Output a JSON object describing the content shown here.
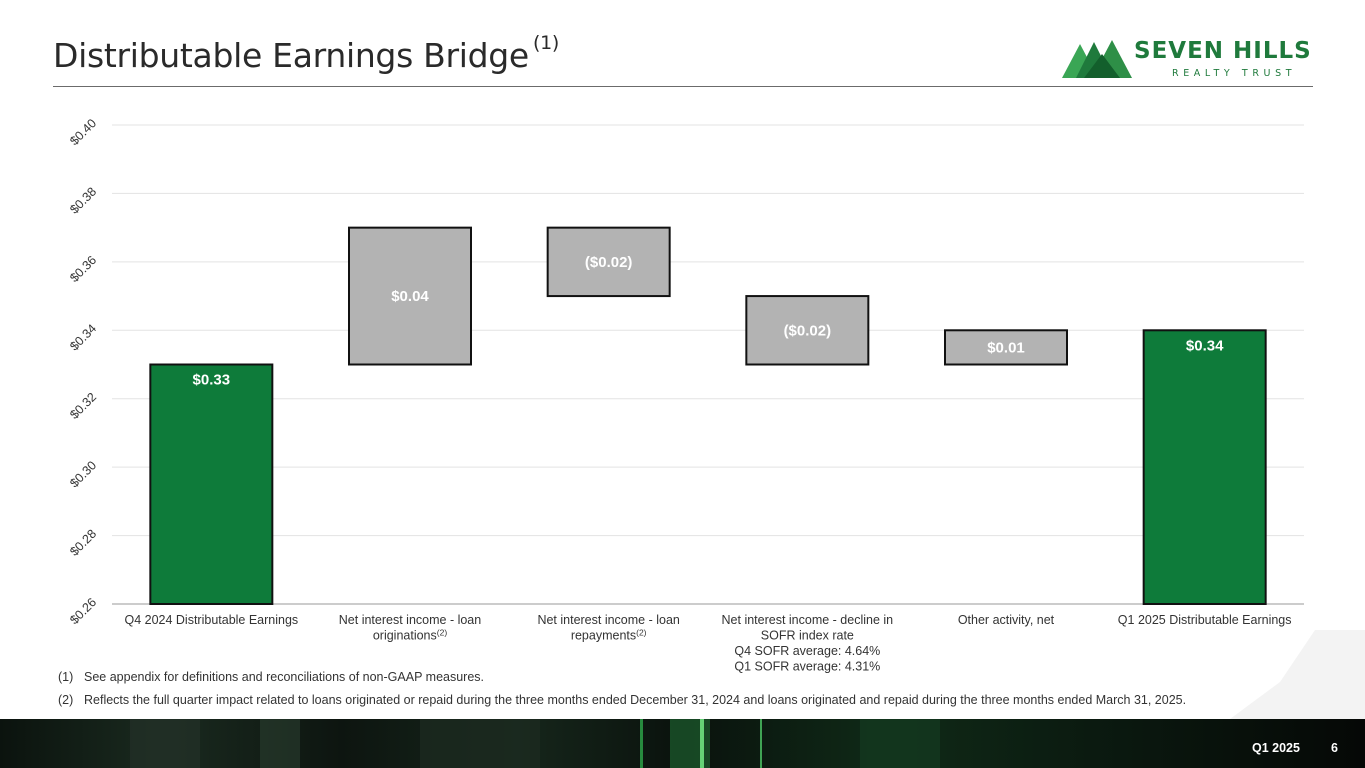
{
  "page": {
    "title": "Distributable Earnings Bridge",
    "title_note": "(1)",
    "logo": {
      "name": "SEVEN HILLS",
      "tagline": "REALTY TRUST"
    },
    "footnotes": [
      {
        "num": "(1)",
        "text": "See appendix for definitions and reconciliations of non-GAAP measures."
      },
      {
        "num": "(2)",
        "text": "Reflects the full quarter impact related to loans originated or repaid during the three months ended December 31, 2024 and loans originated and repaid during the three months ended March 31, 2025."
      }
    ],
    "footer": {
      "period": "Q1 2025",
      "page_number": "6"
    }
  },
  "chart_data": {
    "type": "bar",
    "subtype": "waterfall",
    "ylim": [
      0.26,
      0.4
    ],
    "yticks": [
      "$0.26",
      "$0.28",
      "$0.30",
      "$0.32",
      "$0.34",
      "$0.36",
      "$0.38",
      "$0.40"
    ],
    "ytick_values": [
      0.26,
      0.28,
      0.3,
      0.32,
      0.34,
      0.36,
      0.38,
      0.4
    ],
    "grid": true,
    "bars": [
      {
        "category": [
          "Q4 2024 Distributable Earnings"
        ],
        "sup": "",
        "kind": "total",
        "start": 0.26,
        "end": 0.33,
        "label": "$0.33"
      },
      {
        "category": [
          "Net interest income - loan",
          "originations"
        ],
        "sup": "(2)",
        "kind": "delta",
        "start": 0.33,
        "end": 0.37,
        "label": "$0.04"
      },
      {
        "category": [
          "Net interest income - loan",
          "repayments"
        ],
        "sup": "(2)",
        "kind": "delta",
        "start": 0.37,
        "end": 0.35,
        "label": "($0.02)"
      },
      {
        "category": [
          "Net interest income - decline in",
          "SOFR index rate",
          "Q4 SOFR average: 4.64%",
          "Q1 SOFR average: 4.31%"
        ],
        "sup": "",
        "kind": "delta",
        "start": 0.35,
        "end": 0.33,
        "label": "($0.02)"
      },
      {
        "category": [
          "Other activity, net"
        ],
        "sup": "",
        "kind": "delta",
        "start": 0.33,
        "end": 0.34,
        "label": "$0.01"
      },
      {
        "category": [
          "Q1 2025 Distributable Earnings"
        ],
        "sup": "",
        "kind": "total",
        "start": 0.26,
        "end": 0.34,
        "label": "$0.34"
      }
    ],
    "colors": {
      "total": "#0e7b3a",
      "delta": "#b3b3b3",
      "outline": "#111111",
      "label": "#ffffff",
      "grid": "#e3e3e3",
      "axis": "#9a9a9a"
    }
  }
}
